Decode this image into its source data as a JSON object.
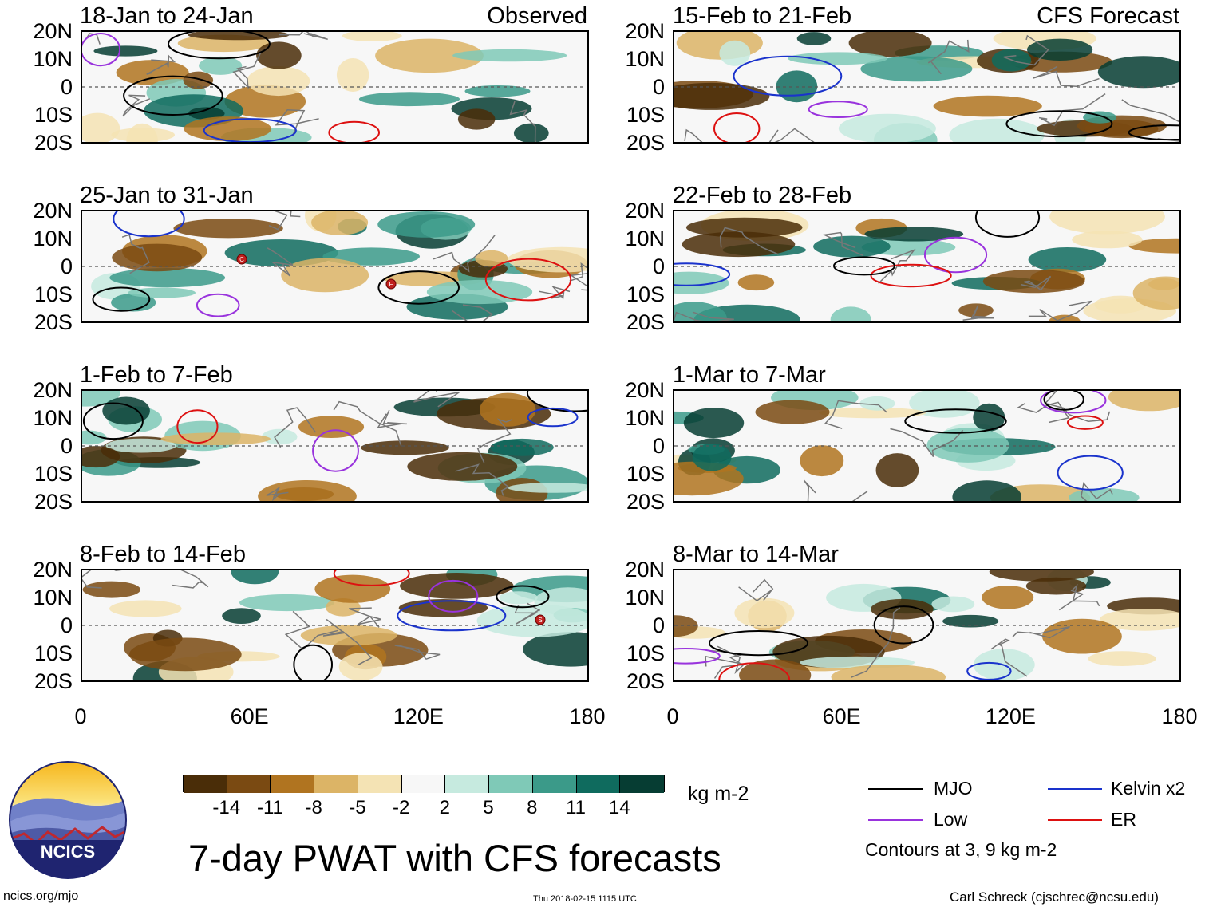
{
  "title": "7-day PWAT with CFS forecasts",
  "source_url": "ncics.org/mjo",
  "timestamp": "Thu 2018-02-15 1115 UTC",
  "author": "Carl Schreck (cjschrec@ncsu.edu)",
  "logo": {
    "text": "NCICS"
  },
  "column_tags": {
    "observed": "Observed",
    "forecast": "CFS Forecast"
  },
  "lat_labels": [
    "20N",
    "10N",
    "0",
    "10S",
    "20S"
  ],
  "lon_labels": [
    "0",
    "60E",
    "120E",
    "180"
  ],
  "panels": {
    "observed": [
      {
        "period": "18-Jan to 24-Jan"
      },
      {
        "period": "25-Jan to 31-Jan"
      },
      {
        "period": "1-Feb to 7-Feb"
      },
      {
        "period": "8-Feb to 14-Feb"
      }
    ],
    "forecast": [
      {
        "period": "15-Feb to 21-Feb"
      },
      {
        "period": "22-Feb to 28-Feb"
      },
      {
        "period": "1-Mar to 7-Mar"
      },
      {
        "period": "8-Mar to 14-Mar"
      }
    ]
  },
  "storm_markers": [
    {
      "panel": "25-Jan to 31-Jan",
      "letter": "C"
    },
    {
      "panel": "25-Jan to 31-Jan",
      "letter": "F"
    },
    {
      "panel": "8-Feb to 14-Feb",
      "letter": "S"
    }
  ],
  "colorbar": {
    "units": "kg m-2",
    "ticks": [
      "-14",
      "-11",
      "-8",
      "-5",
      "-2",
      "2",
      "5",
      "8",
      "11",
      "14"
    ],
    "colors": [
      "#4a2d08",
      "#7a4a12",
      "#b07420",
      "#dcb466",
      "#f4e3b4",
      "#f7f7f7",
      "#c6eadf",
      "#7fc9b7",
      "#3b9a89",
      "#0f6b5e",
      "#063d33"
    ]
  },
  "legend": {
    "items": [
      {
        "label": "MJO",
        "color": "#000000"
      },
      {
        "label": "Kelvin x2",
        "color": "#1a33cc"
      },
      {
        "label": "Low",
        "color": "#9933dd"
      },
      {
        "label": "ER",
        "color": "#dd1111"
      }
    ],
    "note": "Contours at 3, 9 kg m-2"
  }
}
